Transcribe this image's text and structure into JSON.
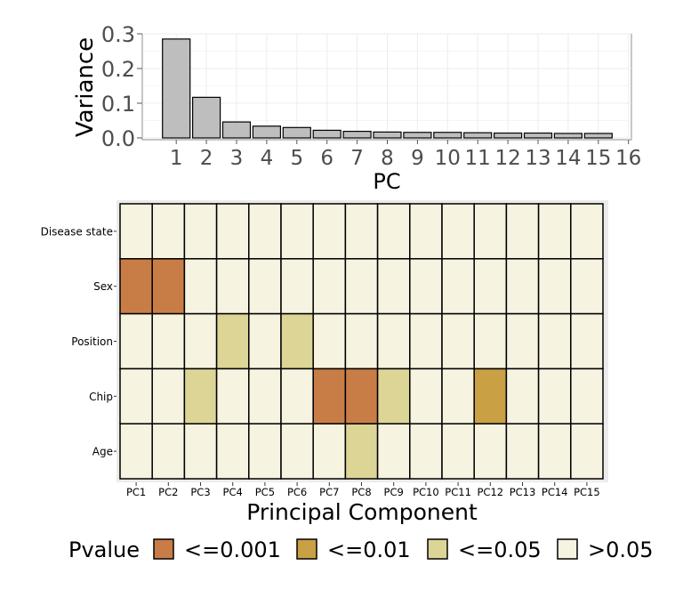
{
  "chart_data": [
    {
      "type": "bar",
      "xlabel": "PC",
      "ylabel": "Variance",
      "ylim": [
        0,
        0.3
      ],
      "y_ticks": [
        "0.0",
        "0.1",
        "0.2",
        "0.3"
      ],
      "x_ticks": [
        "1",
        "2",
        "3",
        "4",
        "5",
        "6",
        "7",
        "8",
        "9",
        "10",
        "11",
        "12",
        "13",
        "14",
        "15",
        "16"
      ],
      "categories": [
        1,
        2,
        3,
        4,
        5,
        6,
        7,
        8,
        9,
        10,
        11,
        12,
        13,
        14,
        15
      ],
      "values": [
        0.285,
        0.117,
        0.046,
        0.034,
        0.03,
        0.022,
        0.019,
        0.017,
        0.016,
        0.016,
        0.015,
        0.014,
        0.014,
        0.013,
        0.013
      ],
      "bar_color": "#bebebe",
      "grid": true
    },
    {
      "type": "heatmap",
      "xlabel": "Principal Component",
      "columns": [
        "PC1",
        "PC2",
        "PC3",
        "PC4",
        "PC5",
        "PC6",
        "PC7",
        "PC8",
        "PC9",
        "PC10",
        "PC11",
        "PC12",
        "PC13",
        "PC14",
        "PC15"
      ],
      "rows": [
        "Disease state",
        "Sex",
        "Position",
        "Chip",
        "Age"
      ],
      "cells": [
        [
          3,
          3,
          3,
          3,
          3,
          3,
          3,
          3,
          3,
          3,
          3,
          3,
          3,
          3,
          3
        ],
        [
          0,
          0,
          3,
          3,
          3,
          3,
          3,
          3,
          3,
          3,
          3,
          3,
          3,
          3,
          3
        ],
        [
          3,
          3,
          3,
          2,
          3,
          2,
          3,
          3,
          3,
          3,
          3,
          3,
          3,
          3,
          3
        ],
        [
          3,
          3,
          2,
          3,
          3,
          3,
          0,
          0,
          2,
          3,
          3,
          1,
          3,
          3,
          3
        ],
        [
          3,
          3,
          3,
          3,
          3,
          3,
          3,
          2,
          3,
          3,
          3,
          3,
          3,
          3,
          3
        ]
      ],
      "legend": {
        "title": "Pvalue",
        "entries": [
          {
            "label": "<=0.001",
            "color": "#c97d46"
          },
          {
            "label": "<=0.01",
            "color": "#c9a043"
          },
          {
            "label": "<=0.05",
            "color": "#ddd596"
          },
          {
            "label": ">0.05",
            "color": "#f7f3e1"
          }
        ]
      }
    }
  ]
}
